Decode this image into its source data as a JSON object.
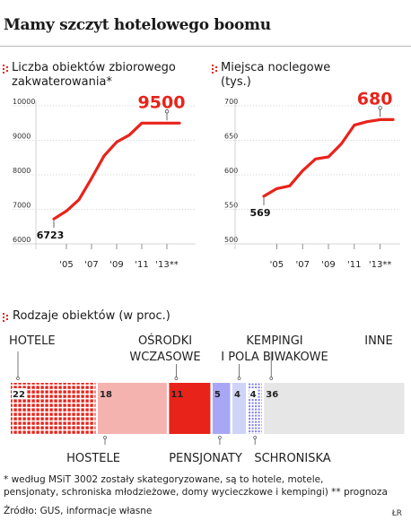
{
  "title": "Mamy szczyt hotelowego boomu",
  "chart_data": [
    {
      "type": "line",
      "title_lines": [
        "Liczba obiektów zbiorowego",
        "zakwaterowania*"
      ],
      "x": [
        2004,
        2005,
        2006,
        2007,
        2008,
        2009,
        2010,
        2011,
        2012,
        2013,
        2014
      ],
      "x_tick_labels": [
        "'05",
        "'07",
        "'09",
        "'11",
        "'13**"
      ],
      "x_tick_years": [
        2005,
        2007,
        2009,
        2011,
        2013
      ],
      "values": [
        6723,
        6950,
        7280,
        7900,
        8550,
        8950,
        9150,
        9500,
        9500,
        9500,
        9500
      ],
      "ylim": [
        6000,
        10000
      ],
      "y_ticks": [
        6000,
        7000,
        8000,
        9000,
        10000
      ],
      "start_label": "6723",
      "end_label": "9500",
      "color": "#e8231a"
    },
    {
      "type": "line",
      "title_lines": [
        "Miejsca noclegowe",
        "(tys.)"
      ],
      "x": [
        2004,
        2005,
        2006,
        2007,
        2008,
        2009,
        2010,
        2011,
        2012,
        2013,
        2014
      ],
      "x_tick_labels": [
        "'05",
        "'07",
        "'09",
        "'11",
        "'13**"
      ],
      "x_tick_years": [
        2005,
        2007,
        2009,
        2011,
        2013
      ],
      "values": [
        569,
        580,
        584,
        606,
        623,
        626,
        645,
        672,
        677,
        680,
        680
      ],
      "ylim": [
        500,
        700
      ],
      "y_ticks": [
        500,
        550,
        600,
        650,
        700
      ],
      "start_label": "569",
      "end_label": "680",
      "color": "#e8231a"
    },
    {
      "type": "bar",
      "stacked": true,
      "title": "Rodzaje obiektów (w proc.)",
      "categories": [
        "HOTELE",
        "HOSTELE",
        "OŚRODKI WCZASOWE",
        "PENSJONATY",
        "KEMPINGI I POLA BIWAKOWE",
        "SCHRONISKA",
        "INNE"
      ],
      "values": [
        22,
        18,
        11,
        5,
        4,
        4,
        36
      ],
      "value_labels": [
        "22",
        "18",
        "11",
        "5",
        "4",
        "4",
        "36"
      ],
      "colors": [
        "#e8231a",
        "#f5b3b0",
        "#e8231a",
        "#a8a7f5",
        "#cfd4f7",
        "#a8a7f5",
        "#e6e6e6"
      ],
      "patterns": [
        "grid",
        "solid",
        "solid",
        "solid",
        "solid",
        "dotted",
        "solid"
      ],
      "label_position": [
        "top",
        "bottom",
        "top",
        "bottom",
        "top",
        "bottom",
        "top"
      ],
      "label_lines": [
        [
          "HOTELE"
        ],
        [
          "HOSTELE"
        ],
        [
          "OŚRODKI",
          "WCZASOWE"
        ],
        [
          "PENSJONATY"
        ],
        [
          "KEMPINGI",
          "I POLA BIWAKOWE"
        ],
        [
          "SCHRONISKA"
        ],
        [
          "INNE"
        ]
      ]
    }
  ],
  "footnotes": [
    "* według MSiT 3002 zostały skategoryzowane, są to hotele, motele,",
    "pensjonaty, schroniska młodzieżowe, domy wycieczkowe i kempingi)   ** prognoza",
    "Źródło: GUS, informacje własne"
  ],
  "credit": "ŁR"
}
